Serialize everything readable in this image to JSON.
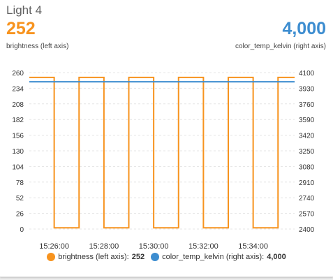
{
  "card": {
    "title": "Light 4"
  },
  "stats": {
    "left": {
      "value": "252",
      "label": "brightness (left axis)",
      "color": "#f7931e"
    },
    "right": {
      "value": "4,000",
      "label": "color_temp_kelvin (right axis)",
      "color": "#3d8dd0"
    }
  },
  "legend": {
    "items": [
      {
        "name": "brightness (left axis):",
        "value": "252",
        "color": "#f7931e"
      },
      {
        "name": "color_temp_kelvin (right axis):",
        "value": "4,000",
        "color": "#3d8dd0"
      }
    ]
  },
  "chart_data": {
    "type": "line",
    "x_range": [
      "15:25:00",
      "15:35:40"
    ],
    "x_ticks": [
      "15:26:00",
      "15:28:00",
      "15:30:00",
      "15:32:00",
      "15:34:00"
    ],
    "y_left": {
      "ticks": [
        0,
        26,
        52,
        78,
        104,
        130,
        156,
        182,
        208,
        234,
        260
      ],
      "range": [
        0,
        260
      ]
    },
    "y_right": {
      "ticks": [
        2400,
        2570,
        2740,
        2910,
        3080,
        3250,
        3420,
        3590,
        3760,
        3930,
        4100
      ],
      "range": [
        2400,
        4100
      ]
    },
    "grid": true,
    "series": [
      {
        "name": "brightness (left axis)",
        "axis": "left",
        "color": "#f7931e",
        "step": true,
        "points": [
          [
            "15:25:00",
            252
          ],
          [
            "15:26:00",
            2
          ],
          [
            "15:27:00",
            252
          ],
          [
            "15:28:00",
            2
          ],
          [
            "15:29:00",
            252
          ],
          [
            "15:30:00",
            2
          ],
          [
            "15:31:00",
            252
          ],
          [
            "15:32:00",
            2
          ],
          [
            "15:33:00",
            252
          ],
          [
            "15:34:00",
            2
          ],
          [
            "15:35:00",
            252
          ],
          [
            "15:35:40",
            252
          ]
        ]
      },
      {
        "name": "color_temp_kelvin (right axis)",
        "axis": "right",
        "color": "#3d8dd0",
        "step": false,
        "points": [
          [
            "15:25:00",
            4000
          ],
          [
            "15:35:40",
            4000
          ]
        ]
      }
    ]
  }
}
